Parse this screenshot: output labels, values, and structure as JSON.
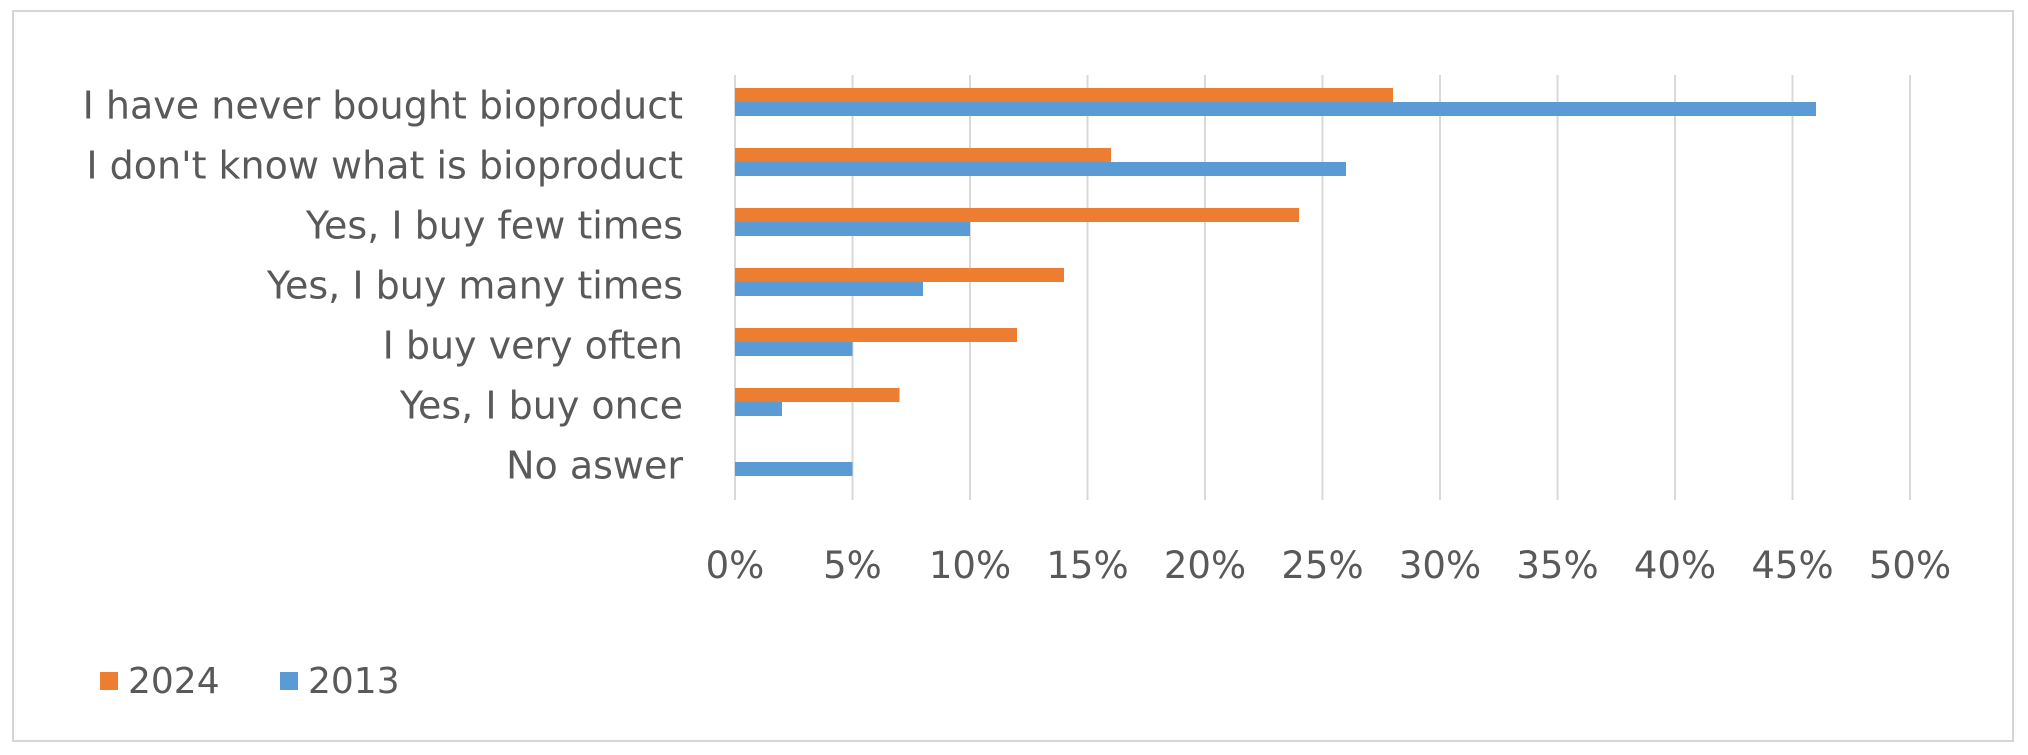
{
  "chart_data": {
    "type": "bar",
    "orientation": "horizontal",
    "title": "",
    "xlabel": "",
    "ylabel": "",
    "categories": [
      "I have never bought bioproduct",
      "I don't know what is bioproduct",
      "Yes, I buy few times",
      "Yes, I buy many times",
      "I buy very often",
      "Yes, I buy once",
      "No aswer"
    ],
    "series": [
      {
        "name": "2024",
        "color": "#ed7d31",
        "values": [
          28,
          16,
          24,
          14,
          12,
          7,
          0
        ]
      },
      {
        "name": "2013",
        "color": "#5b9bd5",
        "values": [
          46,
          26,
          10,
          8,
          5,
          2,
          5
        ]
      }
    ],
    "xlim": [
      0,
      50
    ],
    "x_ticks": [
      0,
      5,
      10,
      15,
      20,
      25,
      30,
      35,
      40,
      45,
      50
    ],
    "x_tick_labels": [
      "0%",
      "5%",
      "10%",
      "15%",
      "20%",
      "25%",
      "30%",
      "35%",
      "40%",
      "45%",
      "50%"
    ],
    "grid": "vertical",
    "legend_position": "bottom-left"
  }
}
